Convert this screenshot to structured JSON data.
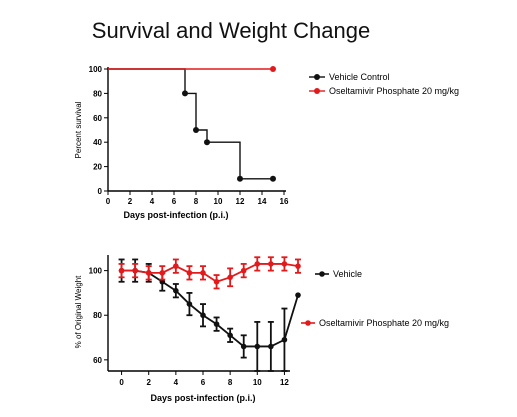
{
  "title": "Survival and Weight Change",
  "colors": {
    "vehicle": "#111111",
    "treatment": "#e31a1c",
    "axis": "#000000"
  },
  "chart_data": [
    {
      "type": "line",
      "variant": "step",
      "xlabel": "Days post-infection (p.i.)",
      "ylabel": "Percent survival",
      "xlim": [
        0,
        16
      ],
      "ylim": [
        0,
        100
      ],
      "xticks": [
        0,
        2,
        4,
        6,
        8,
        10,
        12,
        14,
        16
      ],
      "yticks": [
        0,
        20,
        40,
        60,
        80,
        100
      ],
      "grid": false,
      "legend": "right",
      "series": [
        {
          "name": "Vehicle Control",
          "color": "#111111",
          "x": [
            0,
            7,
            8,
            9,
            12,
            15
          ],
          "y": [
            100,
            80,
            50,
            40,
            10,
            10
          ],
          "markers_at": [
            7,
            8,
            9,
            12,
            15
          ]
        },
        {
          "name": "Oseltamivir Phosphate 20 mg/kg",
          "color": "#e31a1c",
          "x": [
            0,
            15
          ],
          "y": [
            100,
            100
          ],
          "markers_at": [
            15
          ]
        }
      ]
    },
    {
      "type": "line",
      "xlabel": "Days post-infection (p.i.)",
      "ylabel": "% of Original Weight",
      "xlim": [
        -1,
        13
      ],
      "ylim": [
        55,
        107
      ],
      "xticks": [
        0,
        2,
        4,
        6,
        8,
        10,
        12
      ],
      "yticks": [
        60,
        80,
        100
      ],
      "grid": false,
      "legend": "right",
      "series": [
        {
          "name": "Vehicle",
          "color": "#111111",
          "x": [
            0,
            1,
            2,
            3,
            4,
            5,
            6,
            7,
            8,
            9,
            10,
            11,
            12,
            13
          ],
          "y": [
            100,
            100,
            99,
            95,
            91,
            85,
            80,
            76,
            71,
            66,
            66,
            66,
            69,
            89
          ],
          "err": [
            5,
            5,
            4,
            4,
            3,
            5,
            5,
            3,
            3,
            5,
            11,
            11,
            14,
            0
          ]
        },
        {
          "name": "Oseltamivir Phosphate 20 mg/kg",
          "color": "#e31a1c",
          "x": [
            0,
            1,
            2,
            3,
            4,
            5,
            6,
            7,
            8,
            9,
            10,
            11,
            12,
            13
          ],
          "y": [
            100,
            100,
            99,
            99,
            102,
            99,
            99,
            95,
            97,
            100,
            103,
            103,
            103,
            102
          ],
          "err": [
            3,
            3,
            3,
            3,
            3,
            3,
            3,
            3,
            4,
            3,
            3,
            3,
            3,
            3
          ]
        }
      ]
    }
  ]
}
